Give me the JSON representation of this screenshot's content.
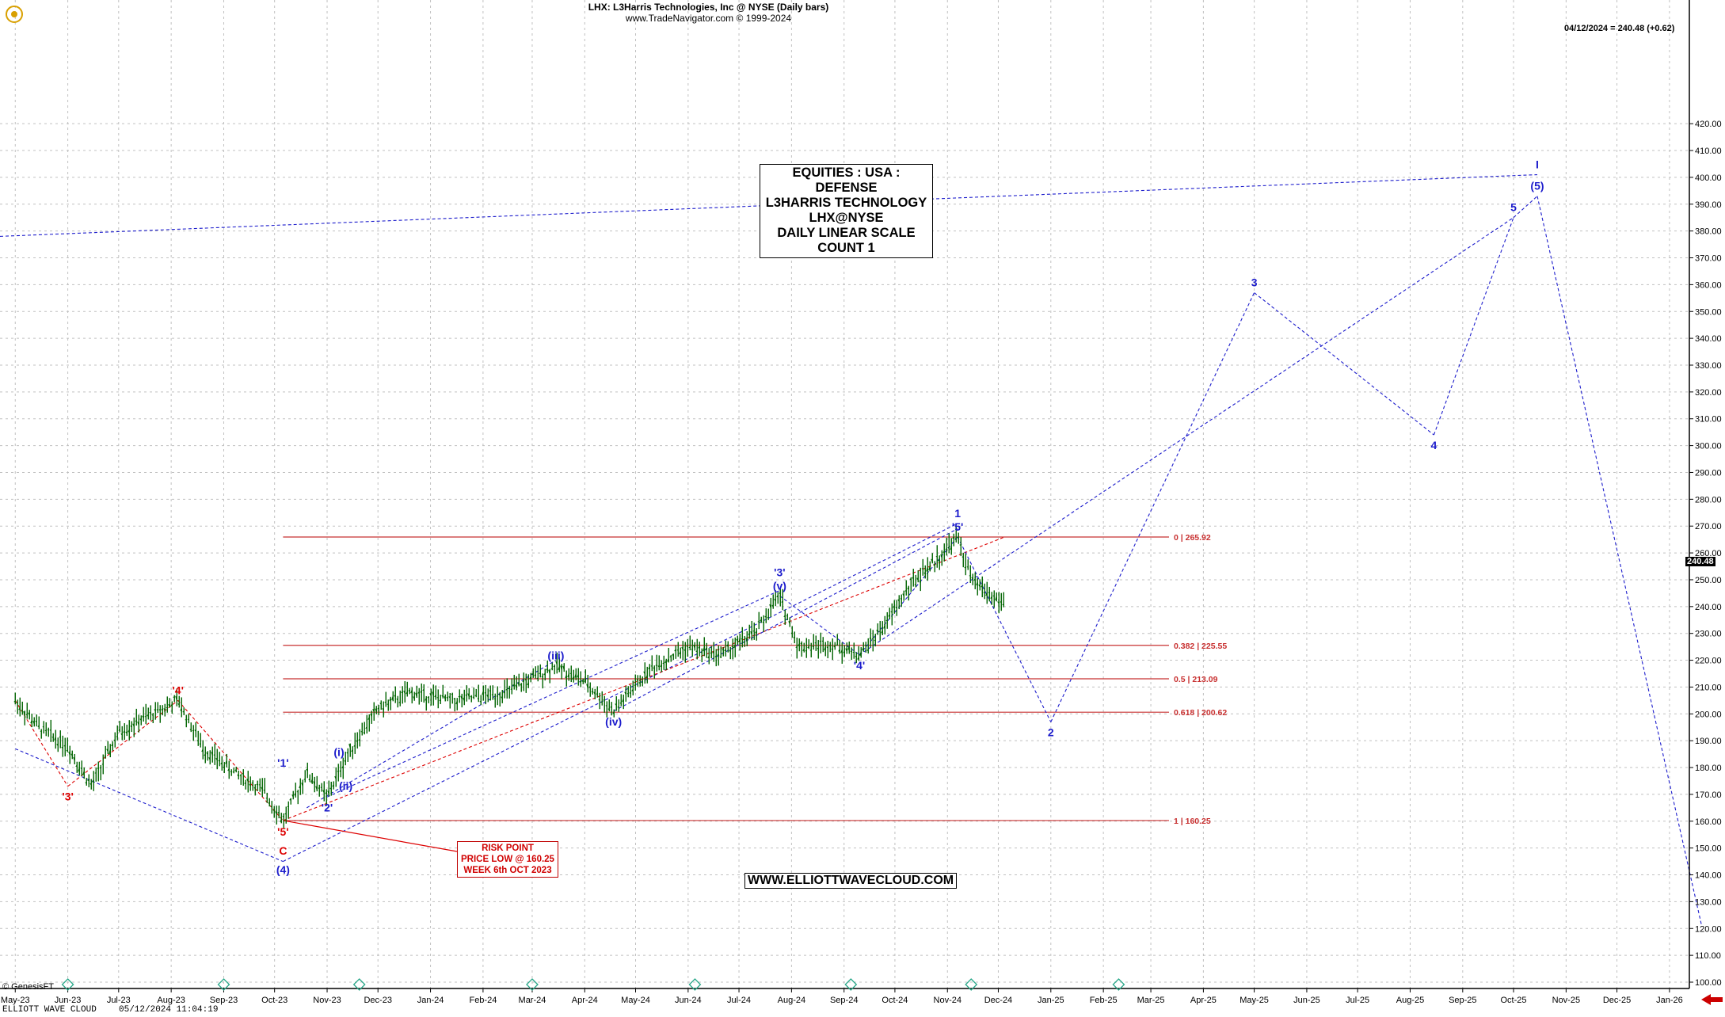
{
  "header": {
    "title": "LHX:  L3Harris Technologies, Inc @ NYSE  (Daily bars)",
    "source": "www.TradeNavigator.com © 1999-2024",
    "last_quote": "04/12/2024 = 240.48 (+0.62)",
    "last_price_tag": "240.48"
  },
  "info_box": {
    "line1": "EQUITIES : USA : DEFENSE",
    "line2": "L3HARRIS TECHNOLOGY",
    "line3": "LHX@NYSE",
    "line4": "DAILY LINEAR SCALE",
    "line5": "COUNT 1"
  },
  "risk_box": {
    "line1": "RISK POINT",
    "line2": "PRICE LOW @ 160.25",
    "line3": "WEEK 6th OCT 2023"
  },
  "website": "WWW.ELLIOTTWAVECLOUD.COM",
  "footer": {
    "genesis": "© GenesisFT",
    "brand": "ELLIOTT WAVE CLOUD",
    "timestamp": "05/12/2024 11:04:19"
  },
  "colors": {
    "price": "#006400",
    "wave_blue": "#1c1ccc",
    "wave_red": "#dd0000",
    "fib": "#c83030",
    "grid": "#c0c0c0"
  },
  "chart_data": {
    "type": "line",
    "description": "OHLC daily price bars with Elliott Wave annotations and projection",
    "y_axis": {
      "min": 100,
      "max": 420,
      "step": 10,
      "side": "right"
    },
    "x_ticks": [
      "May-23",
      "Jun-23",
      "Jul-23",
      "Aug-23",
      "Sep-23",
      "Oct-23",
      "Nov-23",
      "Dec-23",
      "Jan-24",
      "Feb-24",
      "Mar-24",
      "Apr-24",
      "May-24",
      "Jun-24",
      "Jul-24",
      "Aug-24",
      "Sep-24",
      "Oct-24",
      "Nov-24",
      "Dec-24",
      "Jan-25",
      "Feb-25",
      "Mar-25",
      "Apr-25",
      "May-25",
      "Jun-25",
      "Jul-25",
      "Aug-25",
      "Sep-25",
      "Oct-25",
      "Nov-25",
      "Dec-25",
      "Jan-26"
    ],
    "price_path": [
      [
        "2023-05-01",
        205
      ],
      [
        "2023-05-15",
        195
      ],
      [
        "2023-06-01",
        188
      ],
      [
        "2023-06-15",
        173
      ],
      [
        "2023-07-01",
        193
      ],
      [
        "2023-07-15",
        198
      ],
      [
        "2023-08-05",
        205
      ],
      [
        "2023-08-20",
        187
      ],
      [
        "2023-09-10",
        177
      ],
      [
        "2023-09-25",
        171
      ],
      [
        "2023-10-06",
        160.25
      ],
      [
        "2023-10-20",
        178
      ],
      [
        "2023-11-01",
        169
      ],
      [
        "2023-11-15",
        187
      ],
      [
        "2023-12-01",
        202
      ],
      [
        "2023-12-20",
        208
      ],
      [
        "2024-01-15",
        205
      ],
      [
        "2024-02-15",
        208
      ],
      [
        "2024-03-15",
        218
      ],
      [
        "2024-04-01",
        212
      ],
      [
        "2024-04-18",
        201
      ],
      [
        "2024-05-10",
        217
      ],
      [
        "2024-06-01",
        225
      ],
      [
        "2024-06-20",
        222
      ],
      [
        "2024-07-10",
        230
      ],
      [
        "2024-07-25",
        244
      ],
      [
        "2024-08-05",
        225
      ],
      [
        "2024-08-25",
        226
      ],
      [
        "2024-09-10",
        222
      ],
      [
        "2024-09-25",
        233
      ],
      [
        "2024-10-10",
        248
      ],
      [
        "2024-10-25",
        257
      ],
      [
        "2024-11-07",
        265.92
      ],
      [
        "2024-11-15",
        250
      ],
      [
        "2024-11-25",
        245
      ],
      [
        "2024-12-05",
        240.48
      ]
    ],
    "fib_levels": [
      {
        "ratio": "0",
        "value": 265.92,
        "label": "0 | 265.92"
      },
      {
        "ratio": "0.382",
        "value": 225.55,
        "label": "0.382 | 225.55"
      },
      {
        "ratio": "0.5",
        "value": 213.09,
        "label": "0.5 | 213.09"
      },
      {
        "ratio": "0.618",
        "value": 200.62,
        "label": "0.618 | 200.62"
      },
      {
        "ratio": "1",
        "value": 160.25,
        "label": "1 | 160.25"
      }
    ],
    "projection": [
      [
        "2024-11-07",
        266
      ],
      [
        "2025-01-01",
        197
      ],
      [
        "2025-05-01",
        357
      ],
      [
        "2025-08-15",
        304
      ],
      [
        "2025-10-01",
        385
      ],
      [
        "2025-10-15",
        393
      ],
      [
        "2026-01-20",
        121
      ]
    ],
    "wave_labels": [
      {
        "text": "'3'",
        "date": "2023-06-01",
        "price": 173,
        "color": "red",
        "pos": "below"
      },
      {
        "text": "'4'",
        "date": "2023-08-05",
        "price": 205,
        "color": "red",
        "pos": "above"
      },
      {
        "text": "'5'",
        "date": "2023-10-06",
        "price": 160,
        "color": "red",
        "pos": "below"
      },
      {
        "text": "C",
        "date": "2023-10-06",
        "price": 160,
        "color": "red",
        "pos": "below2"
      },
      {
        "text": "(4)",
        "date": "2023-10-06",
        "price": 160,
        "color": "blue",
        "pos": "below3"
      },
      {
        "text": "'1'",
        "date": "2023-10-06",
        "price": 178,
        "color": "blue",
        "pos": "above"
      },
      {
        "text": "'2'",
        "date": "2023-11-01",
        "price": 169,
        "color": "blue",
        "pos": "below"
      },
      {
        "text": "(i)",
        "date": "2023-11-08",
        "price": 182,
        "color": "blue",
        "pos": "above"
      },
      {
        "text": "(ii)",
        "date": "2023-11-12",
        "price": 177,
        "color": "blue",
        "pos": "below"
      },
      {
        "text": "(iii)",
        "date": "2024-03-15",
        "price": 218,
        "color": "blue",
        "pos": "above"
      },
      {
        "text": "(iv)",
        "date": "2024-04-18",
        "price": 201,
        "color": "blue",
        "pos": "below"
      },
      {
        "text": "(v)",
        "date": "2024-07-25",
        "price": 244,
        "color": "blue",
        "pos": "above"
      },
      {
        "text": "'3'",
        "date": "2024-07-25",
        "price": 249,
        "color": "blue",
        "pos": "above"
      },
      {
        "text": "'4'",
        "date": "2024-09-10",
        "price": 222,
        "color": "blue",
        "pos": "below"
      },
      {
        "text": "'5'",
        "date": "2024-11-07",
        "price": 266,
        "color": "blue",
        "pos": "above"
      },
      {
        "text": "1",
        "date": "2024-11-07",
        "price": 271,
        "color": "blue",
        "pos": "above"
      },
      {
        "text": "2",
        "date": "2025-01-01",
        "price": 197,
        "color": "blue",
        "pos": "below"
      },
      {
        "text": "3",
        "date": "2025-05-01",
        "price": 357,
        "color": "blue",
        "pos": "above"
      },
      {
        "text": "4",
        "date": "2025-08-15",
        "price": 304,
        "color": "blue",
        "pos": "below"
      },
      {
        "text": "5",
        "date": "2025-10-01",
        "price": 385,
        "color": "blue",
        "pos": "above"
      },
      {
        "text": "(5)",
        "date": "2025-10-15",
        "price": 393,
        "color": "blue",
        "pos": "above"
      },
      {
        "text": "I",
        "date": "2025-10-15",
        "price": 401,
        "color": "blue",
        "pos": "above"
      }
    ]
  }
}
